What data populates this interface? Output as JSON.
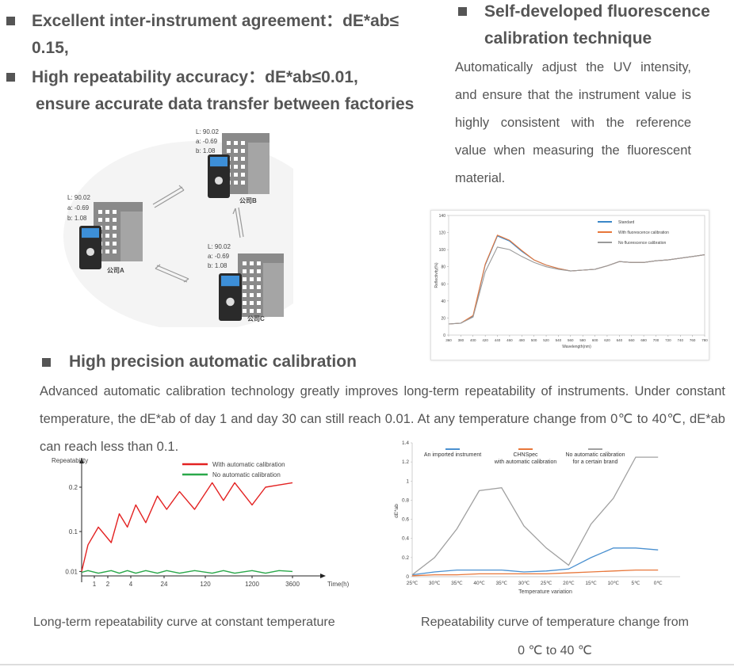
{
  "agreement": "Excellent inter-instrument agreement：dE*ab≤ 0.15,",
  "repeatability": [
    "High repeatability accuracy：dE*ab≤0.01,",
    "ensure accurate data transfer between factories"
  ],
  "fluorescence": {
    "title": "Self-developed fluorescence calibration technique",
    "text": "Automatically adjust the UV intensity, and ensure that the instrument value is highly consistent with the reference value when measuring the fluorescent material."
  },
  "diagram": {
    "sites": [
      {
        "L": "L: 90.02",
        "a": "a: -0.69",
        "b": "b: 1.08",
        "name": "公司A"
      },
      {
        "L": "L: 90.02",
        "a": "a: -0.69",
        "b": "b: 1.08",
        "name": "公司B"
      },
      {
        "L": "L: 90.02",
        "a": "a: -0.69",
        "b": "b: 1.08",
        "name": "公司C"
      }
    ]
  },
  "calibration": {
    "title": "High precision automatic calibration",
    "text": "Advanced automatic calibration technology greatly improves long-term repeatability of instruments. Under constant temperature, the dE*ab of day 1 and day 30 can still reach 0.01. At any temperature change from 0℃ to 40℃, dE*ab can reach less than 0.1."
  },
  "captions": {
    "left": "Long-term repeatability curve at constant temperature",
    "right": [
      "Repeatability curve of temperature change from",
      "0 ℃ to 40 ℃"
    ]
  },
  "chart_data": [
    {
      "type": "line",
      "x_label": "Wavelength(nm)",
      "y_label": "Reflectivity(%)",
      "legend": "upper right",
      "x": [
        360,
        380,
        400,
        420,
        440,
        460,
        480,
        500,
        520,
        540,
        560,
        580,
        600,
        620,
        640,
        660,
        680,
        700,
        720,
        740,
        760,
        780
      ],
      "series": [
        {
          "name": "Standard",
          "color": "#3a87c8",
          "values": [
            13,
            14,
            22,
            82,
            116,
            110,
            98,
            88,
            82,
            78,
            75,
            76,
            77,
            81,
            86,
            85,
            85,
            87,
            88,
            90,
            92,
            94
          ]
        },
        {
          "name": "With fluorescence calibration",
          "color": "#e8773a",
          "values": [
            13,
            14,
            23,
            83,
            117,
            111,
            99,
            88,
            82,
            78,
            75,
            76,
            77,
            81,
            86,
            85,
            85,
            87,
            88,
            90,
            92,
            94
          ]
        },
        {
          "name": "No fluorescence calibration",
          "color": "#9a9a9a",
          "values": [
            13,
            14,
            21,
            74,
            103,
            100,
            92,
            85,
            80,
            77,
            75,
            76,
            77,
            81,
            86,
            85,
            85,
            87,
            88,
            90,
            92,
            94
          ]
        }
      ],
      "xlim": [
        360,
        780
      ],
      "xticks": [
        360,
        380,
        400,
        420,
        440,
        460,
        480,
        500,
        520,
        540,
        560,
        580,
        600,
        620,
        640,
        660,
        680,
        700,
        720,
        740,
        760,
        780
      ],
      "ylim": [
        0,
        140
      ],
      "yticks": [
        0,
        20,
        40,
        60,
        80,
        100,
        120,
        140
      ]
    },
    {
      "type": "line",
      "x_label": "Time(h)",
      "y_label": "Repeatability",
      "legend": "upper center",
      "x": [
        0,
        0.5,
        1.3,
        2.3,
        3,
        3.7,
        7,
        13,
        20,
        30,
        60,
        95,
        280,
        540,
        800,
        1200,
        2000,
        2800,
        3600
      ],
      "series": [
        {
          "name": "With automatic calibration",
          "color": "#e32222",
          "values": [
            0.01,
            0.07,
            0.11,
            0.075,
            0.14,
            0.11,
            0.16,
            0.12,
            0.18,
            0.15,
            0.19,
            0.15,
            0.21,
            0.17,
            0.21,
            0.16,
            0.2,
            0.205,
            0.21
          ]
        },
        {
          "name": "No automatic calibration",
          "color": "#2aa84a",
          "values": [
            0.008,
            0.012,
            0.006,
            0.012,
            0.006,
            0.012,
            0.006,
            0.012,
            0.006,
            0.012,
            0.006,
            0.012,
            0.006,
            0.012,
            0.006,
            0.012,
            0.006,
            0.012,
            0.01
          ]
        }
      ],
      "xlim": [
        0,
        3600
      ],
      "xticks": [
        1,
        2,
        4,
        24,
        120,
        1200,
        3600
      ],
      "ylim": [
        0,
        0.25
      ],
      "yticks": [
        0.01,
        0.1,
        0.2
      ]
    },
    {
      "type": "line",
      "x_label": "Temperature variation",
      "y_label": "dE*ab",
      "legend": "upper left",
      "categories": [
        "25℃",
        "30℃",
        "35℃",
        "40℃",
        "35℃",
        "30℃",
        "25℃",
        "20℃",
        "15℃",
        "10℃",
        "5℃",
        "0℃"
      ],
      "series": [
        {
          "name": "An imported instrument",
          "color": "#4a90d0",
          "values": [
            0.02,
            0.05,
            0.07,
            0.07,
            0.07,
            0.05,
            0.06,
            0.08,
            0.2,
            0.3,
            0.3,
            0.28
          ]
        },
        {
          "name": "CHNSpec\nwith automatic calibration",
          "color": "#e8773a",
          "values": [
            0.01,
            0.02,
            0.02,
            0.03,
            0.03,
            0.03,
            0.03,
            0.04,
            0.05,
            0.06,
            0.07,
            0.07
          ]
        },
        {
          "name": "No automatic calibration\nfor a certain brand",
          "color": "#a0a0a0",
          "values": [
            0.02,
            0.2,
            0.5,
            0.9,
            0.93,
            0.53,
            0.3,
            0.12,
            0.55,
            0.82,
            1.25,
            1.25
          ]
        }
      ],
      "ylim": [
        0,
        1.4
      ],
      "yticks": [
        0,
        0.2,
        0.4,
        0.6,
        0.8,
        1,
        1.2,
        1.4
      ]
    }
  ]
}
